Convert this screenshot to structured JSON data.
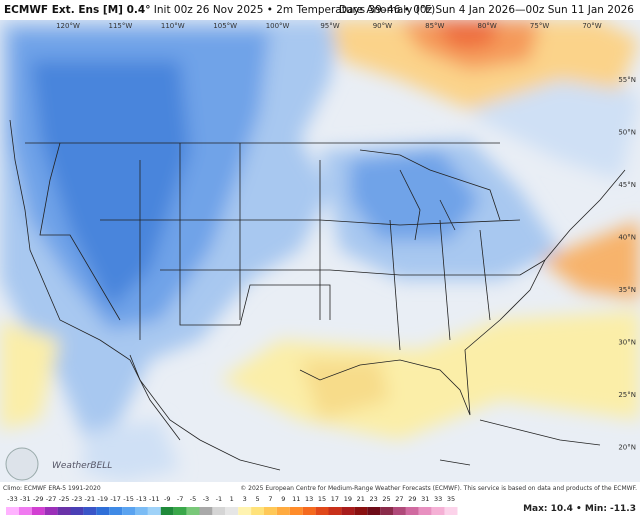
{
  "header": {
    "title": "ECMWF Ext. Ens [M] 0.4°",
    "subtitle": "Init 00z 26 Nov 2025 • 2m Temperature Anomaly (°F)",
    "right": "Days 39–46 • 00z Sun 4 Jan 2026—00z Sun 11 Jan 2026"
  },
  "map": {
    "lon_labels": [
      "120°W",
      "115°W",
      "110°W",
      "105°W",
      "100°W",
      "95°W",
      "90°W",
      "85°W",
      "80°W",
      "75°W",
      "70°W"
    ],
    "lat_labels": [
      "55°N",
      "50°N",
      "45°N",
      "40°N",
      "35°N",
      "30°N",
      "25°N",
      "20°N"
    ],
    "logo": "WeatherBELL"
  },
  "colorbar": {
    "labels": [
      -33,
      -31,
      -29,
      -27,
      -25,
      -23,
      -21,
      -19,
      -17,
      -15,
      -13,
      -11,
      -9,
      -7,
      -5,
      -3,
      -1,
      1,
      3,
      5,
      7,
      9,
      11,
      13,
      15,
      17,
      19,
      21,
      23,
      25,
      27,
      29,
      31,
      33,
      35
    ]
  },
  "footer": {
    "climo": "Climo: ECMWF ERA-5 1991-2020",
    "copyright": "© 2025 European Centre for Medium-Range Weather Forecasts (ECMWF). This service is based on data and products of the ECMWF.",
    "stats": "Max: 10.4 • Min: -11.3"
  }
}
